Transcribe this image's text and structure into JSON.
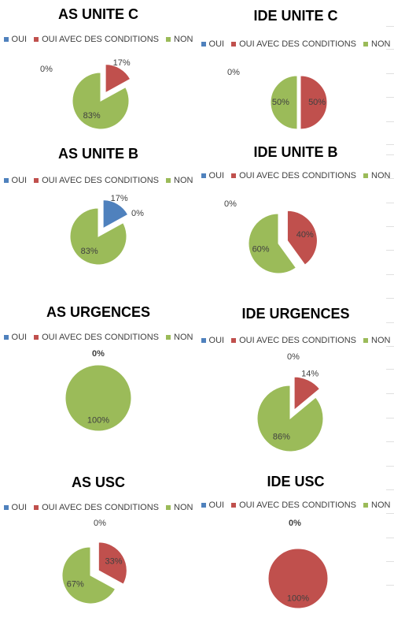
{
  "legend": [
    {
      "label": "OUI",
      "color": "#4f81bd"
    },
    {
      "label": "OUI AVEC DES CONDITIONS",
      "color": "#c0504d"
    },
    {
      "label": "NON",
      "color": "#9bbb59"
    }
  ],
  "chart_data": [
    {
      "type": "pie",
      "title": "AS UNITE C",
      "categories": [
        "OUI",
        "OUI AVEC DES CONDITIONS",
        "NON"
      ],
      "values": [
        0,
        17,
        83
      ],
      "data_labels": [
        "0%",
        "17%",
        "83%"
      ],
      "exploded": [
        "OUI AVEC DES CONDITIONS"
      ]
    },
    {
      "type": "pie",
      "title": "IDE UNITE C",
      "categories": [
        "OUI",
        "OUI AVEC DES CONDITIONS",
        "NON"
      ],
      "values": [
        0,
        50,
        50
      ],
      "data_labels": [
        "0%",
        "50%",
        "50%"
      ],
      "exploded": [
        "OUI AVEC DES CONDITIONS"
      ]
    },
    {
      "type": "pie",
      "title": "AS UNITE B",
      "categories": [
        "OUI",
        "OUI AVEC DES CONDITIONS",
        "NON"
      ],
      "values": [
        17,
        0,
        83
      ],
      "data_labels": [
        "17%",
        "0%",
        "83%"
      ],
      "exploded": [
        "OUI"
      ]
    },
    {
      "type": "pie",
      "title": "IDE UNITE B",
      "categories": [
        "OUI",
        "OUI AVEC DES CONDITIONS",
        "NON"
      ],
      "values": [
        0,
        40,
        60
      ],
      "data_labels": [
        "0%",
        "40%",
        "60%"
      ],
      "exploded": [
        "OUI AVEC DES CONDITIONS"
      ]
    },
    {
      "type": "pie",
      "title": "AS URGENCES",
      "categories": [
        "OUI",
        "OUI AVEC DES CONDITIONS",
        "NON"
      ],
      "values": [
        0,
        0,
        100
      ],
      "data_labels": [
        "0%",
        "",
        "100%"
      ],
      "exploded": []
    },
    {
      "type": "pie",
      "title": "IDE URGENCES",
      "categories": [
        "OUI",
        "OUI AVEC DES CONDITIONS",
        "NON"
      ],
      "values": [
        0,
        14,
        86
      ],
      "data_labels": [
        "0%",
        "14%",
        "86%"
      ],
      "exploded": [
        "OUI AVEC DES CONDITIONS"
      ]
    },
    {
      "type": "pie",
      "title": "AS USC",
      "categories": [
        "OUI",
        "OUI AVEC DES CONDITIONS",
        "NON"
      ],
      "values": [
        0,
        33,
        67
      ],
      "data_labels": [
        "0%",
        "33%",
        "67%"
      ],
      "exploded": [
        "OUI AVEC DES CONDITIONS"
      ]
    },
    {
      "type": "pie",
      "title": "IDE USC",
      "categories": [
        "OUI",
        "OUI AVEC DES CONDITIONS",
        "NON"
      ],
      "values": [
        0,
        100,
        0
      ],
      "data_labels": [
        "0%",
        "100%",
        ""
      ],
      "exploded": []
    }
  ]
}
